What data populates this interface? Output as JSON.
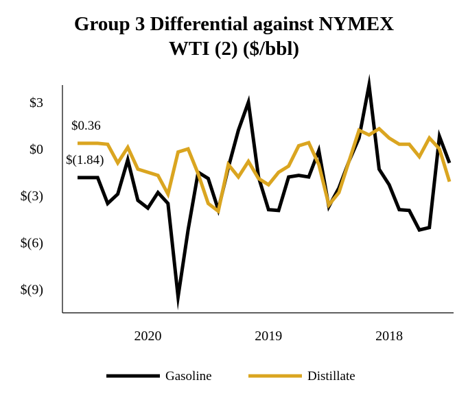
{
  "chart_data": {
    "type": "line",
    "title_line1": "Group 3 Differential against NYMEX",
    "title_line2": "WTI (2) ($/bbl)",
    "y_ticks": [
      {
        "value": 3,
        "label": "$3"
      },
      {
        "value": 0,
        "label": "$0"
      },
      {
        "value": -3,
        "label": "$(3)"
      },
      {
        "value": -6,
        "label": "$(6)"
      },
      {
        "value": -9,
        "label": "$(9)"
      }
    ],
    "ylim": [
      -9.95,
      4.1
    ],
    "x_labels": [
      {
        "index": 7,
        "label": "2020"
      },
      {
        "index": 19,
        "label": "2019"
      },
      {
        "index": 31,
        "label": "2018"
      }
    ],
    "annotations": [
      {
        "label": "$0.36",
        "series": "Distillate",
        "index": 0
      },
      {
        "label": "$(1.84)",
        "series": "Gasoline",
        "index": 0
      }
    ],
    "series": [
      {
        "name": "Gasoline",
        "color": "#000000",
        "values": [
          -1.84,
          -1.84,
          -1.84,
          -3.5,
          -2.9,
          -0.7,
          -3.3,
          -3.8,
          -2.8,
          -3.5,
          -9.5,
          -5.2,
          -1.5,
          -1.9,
          -3.9,
          -1.2,
          1.2,
          3.0,
          -1.8,
          -3.9,
          -3.95,
          -1.8,
          -1.7,
          -1.8,
          -0.1,
          -3.7,
          -2.5,
          -0.8,
          0.7,
          4.1,
          -1.3,
          -2.3,
          -3.9,
          -3.95,
          -5.2,
          -5.05,
          0.8,
          -0.9
        ]
      },
      {
        "name": "Distillate",
        "color": "#DAA520",
        "values": [
          0.36,
          0.36,
          0.36,
          0.3,
          -0.9,
          0.1,
          -1.3,
          -1.5,
          -1.7,
          -2.9,
          -0.2,
          0.0,
          -1.6,
          -3.5,
          -4.0,
          -1.0,
          -1.8,
          -0.8,
          -1.9,
          -2.3,
          -1.5,
          -1.1,
          0.2,
          0.4,
          -1.0,
          -3.6,
          -2.8,
          -0.8,
          1.2,
          0.9,
          1.3,
          0.7,
          0.3,
          0.3,
          -0.5,
          0.7,
          0.0,
          -2.1
        ]
      }
    ]
  }
}
